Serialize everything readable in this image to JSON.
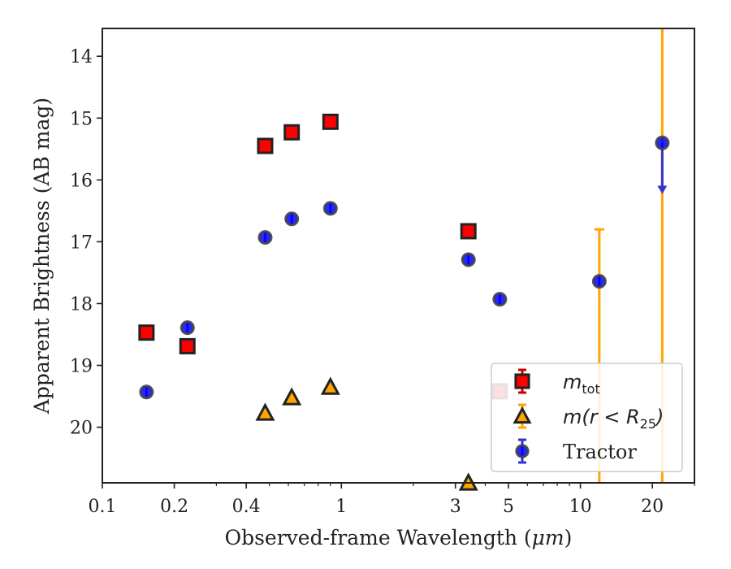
{
  "chart_data": {
    "type": "scatter",
    "xlabel": "Observed-frame Wavelength (",
    "xlabel_unit": "μm",
    "xlabel_close": ")",
    "ylabel": "Apparent Brightness (AB mag)",
    "xscale": "log",
    "xlim": [
      0.1,
      30
    ],
    "ylim": [
      20.9,
      13.55
    ],
    "y_inverted": true,
    "x_ticks": [
      0.1,
      0.2,
      0.4,
      1,
      3,
      5,
      10,
      20
    ],
    "x_tick_labels": [
      "0.1",
      "0.2",
      "0.4",
      "1",
      "3",
      "5",
      "10",
      "20"
    ],
    "y_ticks": [
      14,
      15,
      16,
      17,
      18,
      19,
      20
    ],
    "y_tick_labels": [
      "14",
      "15",
      "16",
      "17",
      "18",
      "19",
      "20"
    ],
    "legend_position": "lower-right",
    "series": [
      {
        "key": "tot",
        "legend_main": "m",
        "legend_sub": "tot",
        "marker": "square",
        "color": "#ff0000",
        "edge": "#222222",
        "points": [
          {
            "x": 0.153,
            "y": 18.47
          },
          {
            "x": 0.227,
            "y": 18.69
          },
          {
            "x": 0.48,
            "y": 15.45
          },
          {
            "x": 0.62,
            "y": 15.23
          },
          {
            "x": 0.9,
            "y": 15.06
          },
          {
            "x": 3.4,
            "y": 16.83
          },
          {
            "x": 4.6,
            "y": 19.42
          }
        ]
      },
      {
        "key": "r25",
        "legend_main": "m(r < R",
        "legend_sub": "25",
        "legend_close": ")",
        "marker": "triangle",
        "color": "#ffa500",
        "edge": "#222222",
        "points": [
          {
            "x": 0.48,
            "y": 19.77
          },
          {
            "x": 0.62,
            "y": 19.52
          },
          {
            "x": 0.9,
            "y": 19.35
          },
          {
            "x": 3.4,
            "y": 20.93
          }
        ],
        "errorbars": [
          {
            "x": 12.0,
            "y": 22.5,
            "yerr_low": 5.7,
            "yerr_high": 1.5
          },
          {
            "x": 22.0,
            "y": 20.0,
            "yerr_low": 6.5,
            "yerr_high": 20.0
          }
        ]
      },
      {
        "key": "tractor",
        "legend_main": "Tractor",
        "marker": "circle",
        "color": "#0000ff",
        "edge": "#444444",
        "points": [
          {
            "x": 0.153,
            "y": 19.43,
            "err": 0.08
          },
          {
            "x": 0.227,
            "y": 18.39,
            "err": 0.08
          },
          {
            "x": 0.48,
            "y": 16.93,
            "err": 0.08
          },
          {
            "x": 0.62,
            "y": 16.63,
            "err": 0.08
          },
          {
            "x": 0.9,
            "y": 16.46,
            "err": 0.08
          },
          {
            "x": 3.4,
            "y": 17.29,
            "err": 0.08
          },
          {
            "x": 4.6,
            "y": 17.93,
            "err": 0.08
          },
          {
            "x": 12.0,
            "y": 17.64,
            "err": 0.08
          },
          {
            "x": 22.0,
            "y": 15.4,
            "upper_limit_to": 16.2
          }
        ]
      }
    ]
  }
}
